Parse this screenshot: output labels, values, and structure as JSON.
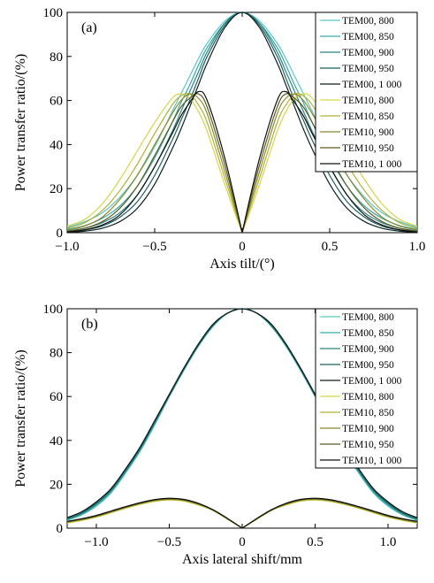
{
  "chart_data": [
    {
      "type": "line",
      "panel_label": "(a)",
      "xlabel": "Axis tilt/(°)",
      "ylabel": "Power transfer ratio/(%)",
      "xlim": [
        -1.0,
        1.0
      ],
      "ylim": [
        0,
        100
      ],
      "xticks": [
        -1.0,
        -0.5,
        0,
        0.5,
        1.0
      ],
      "xtick_labels": [
        "−1.0",
        "−0.5",
        "0",
        "0.5",
        "1.0"
      ],
      "yticks": [
        0,
        20,
        40,
        60,
        80,
        100
      ],
      "ytick_labels": [
        "0",
        "20",
        "40",
        "60",
        "80",
        "100"
      ],
      "legend_position": "top-right",
      "x_samples": [
        0,
        0.1,
        0.2,
        0.25,
        0.3,
        0.35,
        0.4,
        0.5,
        0.6,
        0.7,
        0.8,
        0.9,
        1.0
      ],
      "symmetric_about_zero": true,
      "series": [
        {
          "name": "TEM00, 800",
          "color": "#5cc6c6",
          "y": [
            100,
            96,
            86,
            79,
            71,
            63,
            55,
            39,
            26,
            16,
            9,
            5,
            2.5
          ]
        },
        {
          "name": "TEM00, 850",
          "color": "#3aa6a6",
          "y": [
            100,
            95,
            84,
            76,
            67,
            59,
            50,
            34,
            21,
            12,
            6.5,
            3.2,
            1.5
          ]
        },
        {
          "name": "TEM00, 900",
          "color": "#2b8484",
          "y": [
            100,
            95,
            82,
            73,
            64,
            55,
            46,
            30,
            17,
            9,
            4.5,
            2,
            0.8
          ]
        },
        {
          "name": "TEM00, 950",
          "color": "#1d5f5f",
          "y": [
            100,
            94,
            80,
            70,
            60,
            51,
            42,
            26,
            14,
            7,
            3,
            1.2,
            0.4
          ]
        },
        {
          "name": "TEM00, 1 000",
          "color": "#0e1e1e",
          "y": [
            100,
            93,
            77,
            67,
            57,
            47,
            38,
            22,
            11,
            5,
            2,
            0.7,
            0.2
          ]
        },
        {
          "name": "TEM10, 800",
          "color": "#d6d64a",
          "y": [
            0,
            22,
            46,
            55,
            61,
            63,
            61,
            50,
            37,
            24,
            13,
            6,
            3
          ]
        },
        {
          "name": "TEM10, 850",
          "color": "#b0b03a",
          "y": [
            0,
            25,
            50,
            58,
            63,
            62,
            58,
            45,
            31,
            19,
            10,
            4.5,
            2
          ]
        },
        {
          "name": "TEM10, 900",
          "color": "#8a8a2d",
          "y": [
            0,
            28,
            54,
            61,
            63,
            60,
            54,
            40,
            26,
            15,
            7,
            3,
            1.2
          ]
        },
        {
          "name": "TEM10, 950",
          "color": "#5c5c20",
          "y": [
            0,
            31,
            57,
            63,
            61,
            57,
            50,
            35,
            21,
            11,
            5,
            2,
            0.6
          ]
        },
        {
          "name": "TEM10, 1 000",
          "color": "#101010",
          "y": [
            0,
            34,
            60,
            64,
            59,
            53,
            45,
            30,
            17,
            8,
            3.5,
            1.3,
            0.3
          ]
        }
      ]
    },
    {
      "type": "line",
      "panel_label": "(b)",
      "xlabel": "Axis lateral shift/mm",
      "ylabel": "Power transfer ratio/(%)",
      "xlim": [
        -1.2,
        1.2
      ],
      "ylim": [
        0,
        100
      ],
      "xticks": [
        -1.0,
        -0.5,
        0,
        0.5,
        1.0
      ],
      "xtick_labels": [
        "−1.0",
        "−0.5",
        "0",
        "0.5",
        "1.0"
      ],
      "yticks": [
        0,
        20,
        40,
        60,
        80,
        100
      ],
      "ytick_labels": [
        "0",
        "20",
        "40",
        "60",
        "80",
        "100"
      ],
      "legend_position": "top-right",
      "x_samples": [
        0,
        0.1,
        0.2,
        0.3,
        0.4,
        0.5,
        0.6,
        0.7,
        0.8,
        0.9,
        1.0,
        1.1,
        1.2
      ],
      "symmetric_about_zero": true,
      "series": [
        {
          "name": "TEM00, 800",
          "color": "#5cc6c6",
          "y": [
            100,
            98,
            92,
            83,
            72,
            60,
            47,
            35,
            25,
            16,
            10,
            6,
            3.5
          ]
        },
        {
          "name": "TEM00, 850",
          "color": "#3aa6a6",
          "y": [
            100,
            98,
            92,
            83,
            72,
            60,
            47.5,
            35.5,
            25.5,
            16.5,
            10.5,
            6.3,
            3.8
          ]
        },
        {
          "name": "TEM00, 900",
          "color": "#2b8484",
          "y": [
            100,
            98,
            92.5,
            83.5,
            72.5,
            60.5,
            48,
            36,
            26,
            17,
            11,
            6.7,
            4.1
          ]
        },
        {
          "name": "TEM00, 950",
          "color": "#1d5f5f",
          "y": [
            100,
            98,
            92.5,
            83.5,
            72.5,
            60.5,
            48.5,
            36.5,
            26.5,
            17.5,
            11.5,
            7,
            4.4
          ]
        },
        {
          "name": "TEM00, 1 000",
          "color": "#0e1e1e",
          "y": [
            100,
            98,
            93,
            84,
            73,
            61,
            49,
            37,
            27,
            18,
            12,
            7.5,
            4.8
          ]
        },
        {
          "name": "TEM10, 800",
          "color": "#d6d64a",
          "y": [
            0,
            4,
            8,
            10.5,
            12.3,
            12.8,
            12.2,
            10.8,
            9,
            7,
            5,
            3.5,
            2.3
          ]
        },
        {
          "name": "TEM10, 850",
          "color": "#b0b03a",
          "y": [
            0,
            4.1,
            8.1,
            10.7,
            12.5,
            13,
            12.4,
            11,
            9.2,
            7.2,
            5.2,
            3.7,
            2.5
          ]
        },
        {
          "name": "TEM10, 900",
          "color": "#8a8a2d",
          "y": [
            0,
            4.2,
            8.2,
            10.9,
            12.7,
            13.2,
            12.6,
            11.2,
            9.4,
            7.4,
            5.4,
            3.9,
            2.7
          ]
        },
        {
          "name": "TEM10, 950",
          "color": "#5c5c20",
          "y": [
            0,
            4.3,
            8.3,
            11.1,
            12.9,
            13.4,
            12.8,
            11.4,
            9.6,
            7.6,
            5.6,
            4.1,
            2.9
          ]
        },
        {
          "name": "TEM10, 1 000",
          "color": "#101010",
          "y": [
            0,
            4.4,
            8.4,
            11.3,
            13.1,
            13.6,
            13,
            11.6,
            9.8,
            7.8,
            5.8,
            4.3,
            3.1
          ]
        }
      ]
    }
  ]
}
